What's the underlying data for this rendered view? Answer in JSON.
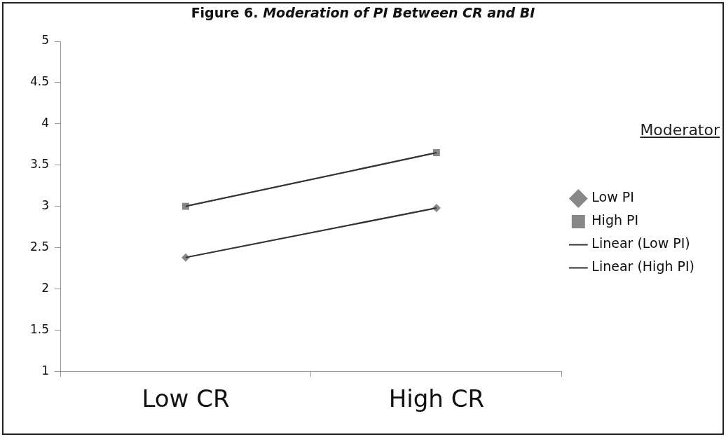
{
  "chart_data": {
    "type": "line",
    "title": "Figure 6. Moderation of PI Between CR and BI",
    "legend_title": "Moderator",
    "categories": [
      "Low CR",
      "High CR"
    ],
    "series": [
      {
        "name": "Low PI",
        "color": "#888888",
        "marker": "diamond",
        "values": [
          2.38,
          2.98
        ]
      },
      {
        "name": "High PI",
        "color": "#888888",
        "marker": "square",
        "values": [
          3.0,
          3.65
        ]
      },
      {
        "name": "Linear (Low PI)",
        "color": "#333333",
        "marker": "none",
        "values": [
          2.38,
          2.98
        ]
      },
      {
        "name": "Linear (High PI)",
        "color": "#333333",
        "marker": "none",
        "values": [
          3.0,
          3.65
        ]
      }
    ],
    "ylim": [
      1,
      5
    ],
    "yticks": [
      1,
      1.5,
      2,
      2.5,
      3,
      3.5,
      4,
      4.5,
      5
    ],
    "grid": false,
    "legend": "right",
    "line_style": "solid"
  }
}
